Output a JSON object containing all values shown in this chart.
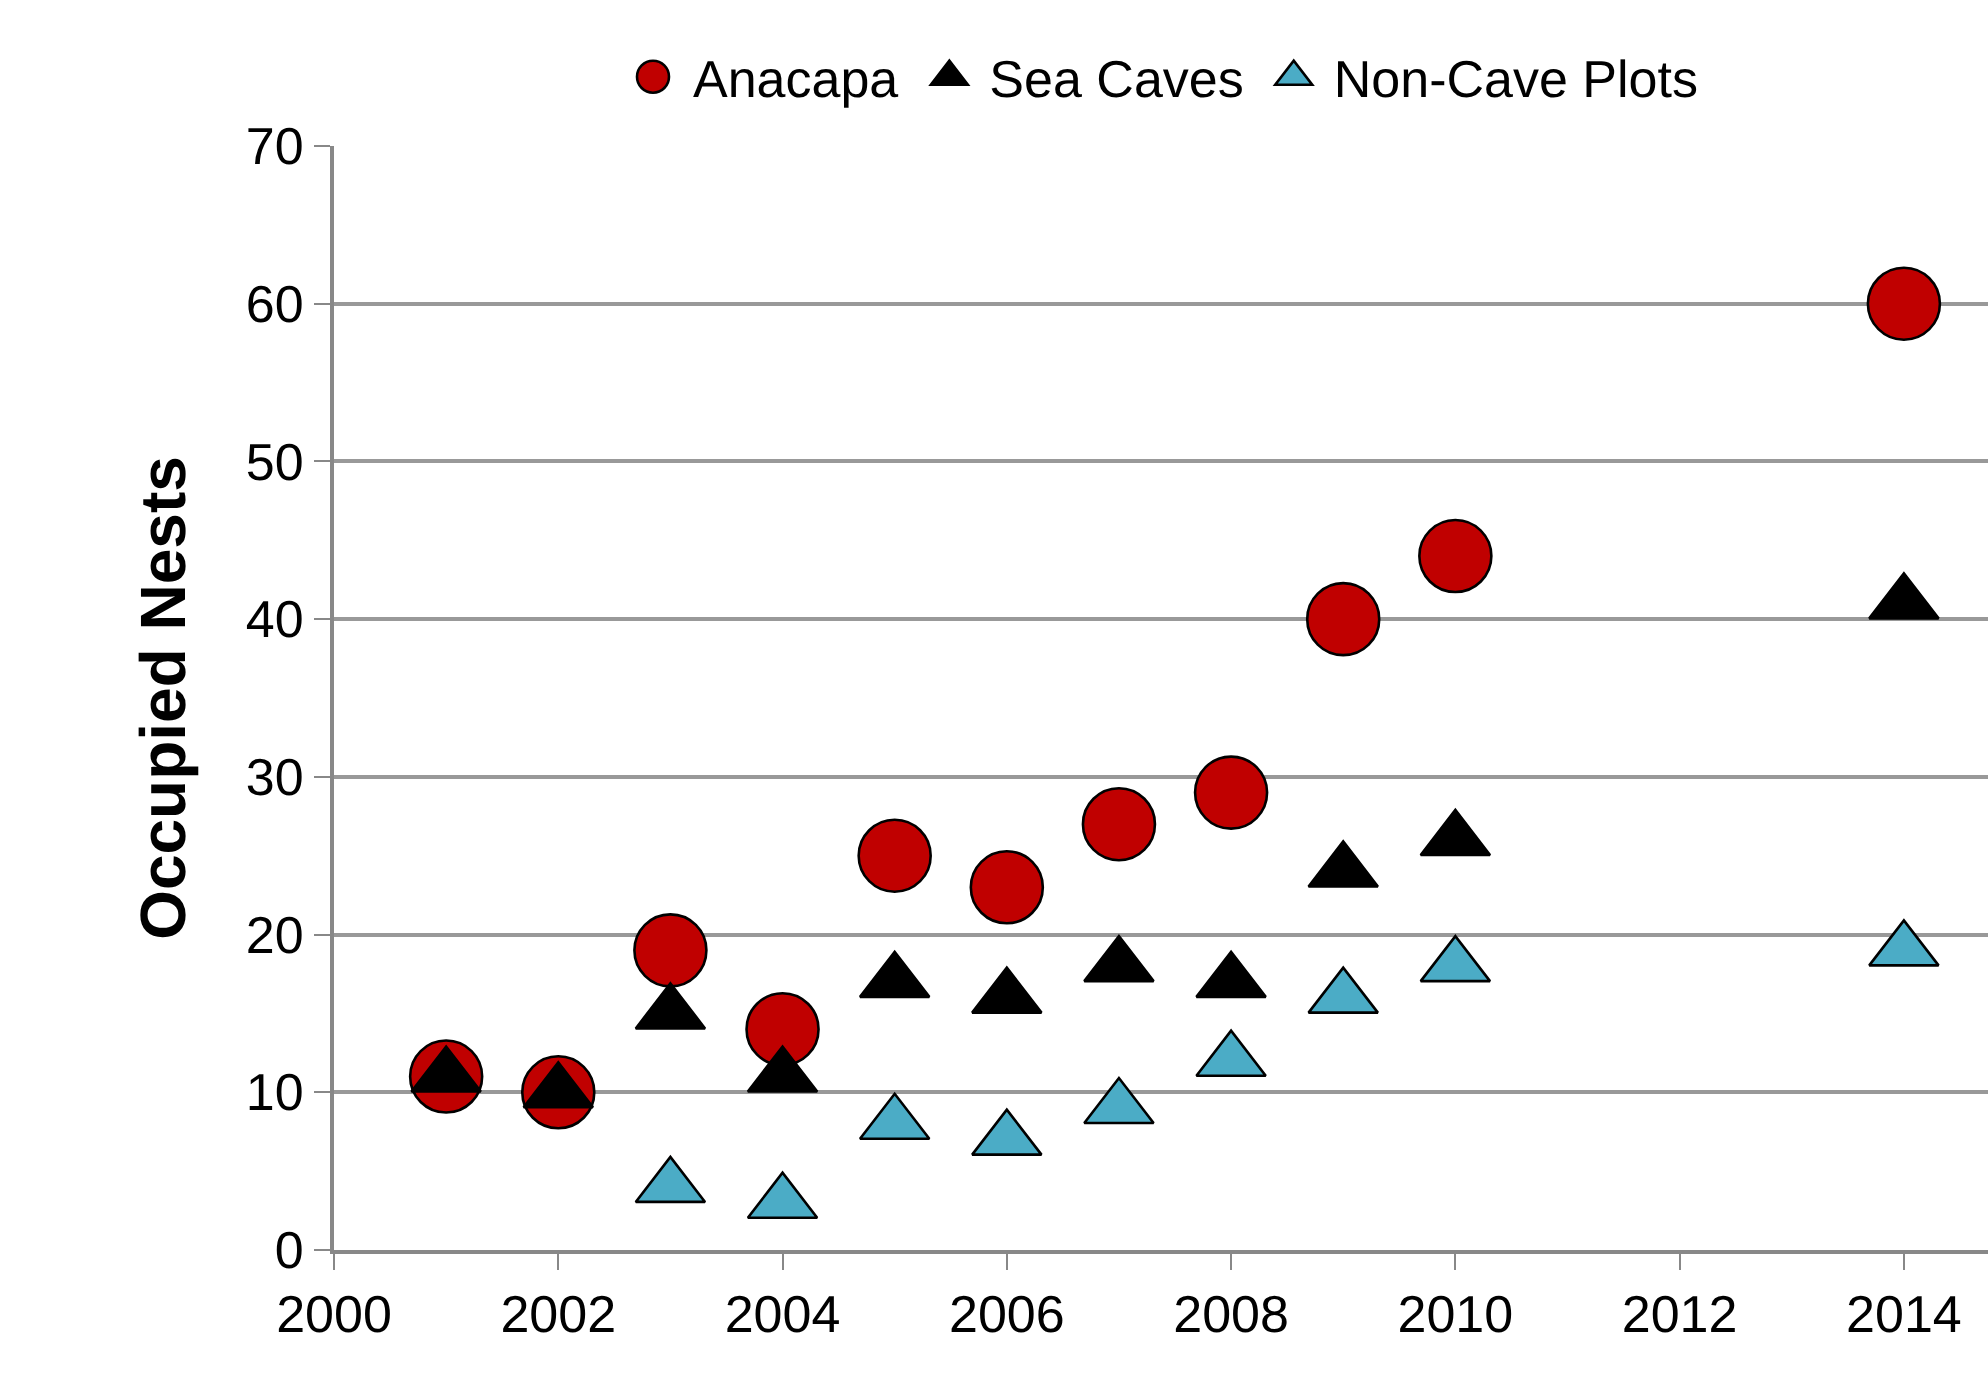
{
  "chart_data": {
    "type": "scatter",
    "ylabel": "Occupied Nests",
    "xlim": [
      2000,
      2014.75
    ],
    "xticks": [
      2000,
      2002,
      2004,
      2006,
      2008,
      2010,
      2012,
      2014
    ],
    "ylim": [
      0,
      70
    ],
    "yticks": [
      0,
      10,
      20,
      30,
      40,
      50,
      60,
      70
    ],
    "grid": "y",
    "legend": "top",
    "series": [
      {
        "name": "Anacapa",
        "color": "#c00000",
        "marker": "circle",
        "x": [
          2001,
          2002,
          2003,
          2004,
          2005,
          2006,
          2007,
          2008,
          2009,
          2010,
          2014
        ],
        "values": [
          11,
          10,
          19,
          14,
          25,
          23,
          27,
          29,
          40,
          44,
          60
        ]
      },
      {
        "name": "Sea Caves",
        "color": "#000000",
        "marker": "triangle",
        "x": [
          2001,
          2002,
          2003,
          2004,
          2005,
          2006,
          2007,
          2008,
          2009,
          2010,
          2014
        ],
        "values": [
          11,
          10,
          15,
          11,
          17,
          16,
          18,
          17,
          24,
          26,
          41
        ]
      },
      {
        "name": "Non-Cave Plots",
        "color": "#4bacc6",
        "marker": "triangle",
        "x": [
          2003,
          2004,
          2005,
          2006,
          2007,
          2008,
          2009,
          2010,
          2014
        ],
        "values": [
          4,
          3,
          8,
          7,
          9,
          12,
          16,
          18,
          19
        ]
      }
    ]
  }
}
